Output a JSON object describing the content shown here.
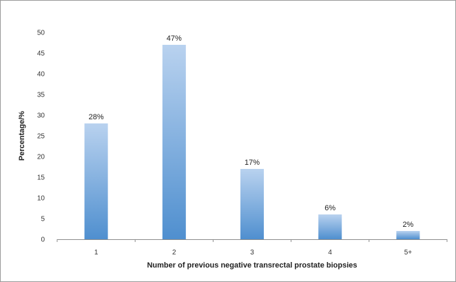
{
  "chart_data": {
    "type": "bar",
    "categories": [
      "1",
      "2",
      "3",
      "4",
      "5+"
    ],
    "values": [
      28,
      47,
      17,
      6,
      2
    ],
    "data_labels": [
      "28%",
      "47%",
      "17%",
      "6%",
      "2%"
    ],
    "title": "",
    "xlabel": "Number of previous negative transrectal prostate biopsies",
    "ylabel": "Percentage/%",
    "ylim": [
      0,
      50
    ],
    "yticks": [
      "0",
      "5",
      "10",
      "15",
      "20",
      "25",
      "30",
      "35",
      "40",
      "45",
      "50"
    ],
    "grid": false,
    "legend": "none",
    "bar_color_top": "#b9d2ef",
    "bar_color_bottom": "#4f8fcf"
  }
}
